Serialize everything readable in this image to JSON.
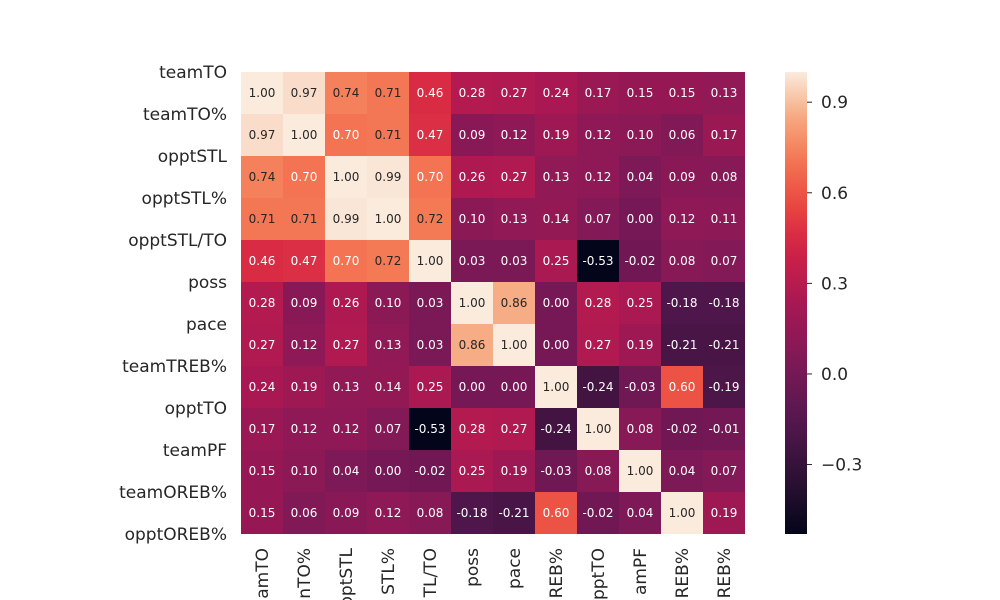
{
  "chart_data": {
    "type": "heatmap",
    "title": "",
    "labels": [
      "teamTO",
      "teamTO%",
      "opptSTL",
      "opptSTL%",
      "opptSTL/TO",
      "poss",
      "pace",
      "teamTREB%",
      "opptTO",
      "teamPF",
      "teamOREB%",
      "opptOREB%"
    ],
    "x_tick_labels": [
      "amTO",
      "nTO%",
      "pptSTL",
      "STL%",
      "TL/TO",
      "poss",
      "pace",
      "REB%",
      "opptTO",
      "amPF",
      "REB%",
      "REB%"
    ],
    "matrix": [
      [
        1.0,
        0.97,
        0.74,
        0.71,
        0.46,
        0.28,
        0.27,
        0.24,
        0.17,
        0.15,
        0.15,
        0.13
      ],
      [
        0.97,
        1.0,
        0.7,
        0.71,
        0.47,
        0.09,
        0.12,
        0.19,
        0.12,
        0.1,
        0.06,
        0.17
      ],
      [
        0.74,
        0.7,
        1.0,
        0.99,
        0.7,
        0.26,
        0.27,
        0.13,
        0.12,
        0.04,
        0.09,
        0.08
      ],
      [
        0.71,
        0.71,
        0.99,
        1.0,
        0.72,
        0.1,
        0.13,
        0.14,
        0.07,
        -0.0,
        0.12,
        0.11
      ],
      [
        0.46,
        0.47,
        0.7,
        0.72,
        1.0,
        0.03,
        0.03,
        0.25,
        -0.53,
        -0.02,
        0.08,
        0.07
      ],
      [
        0.28,
        0.09,
        0.26,
        0.1,
        0.03,
        1.0,
        0.86,
        -0.0,
        0.28,
        0.25,
        -0.18,
        -0.18
      ],
      [
        0.27,
        0.12,
        0.27,
        0.13,
        0.03,
        0.86,
        1.0,
        -0.0,
        0.27,
        0.19,
        -0.21,
        -0.21
      ],
      [
        0.24,
        0.19,
        0.13,
        0.14,
        0.25,
        -0.0,
        -0.0,
        1.0,
        -0.24,
        -0.03,
        0.6,
        -0.19
      ],
      [
        0.17,
        0.12,
        0.12,
        0.07,
        -0.53,
        0.28,
        0.27,
        -0.24,
        1.0,
        0.08,
        -0.02,
        -0.01
      ],
      [
        0.15,
        0.1,
        0.04,
        -0.0,
        -0.02,
        0.25,
        0.19,
        -0.03,
        0.08,
        1.0,
        0.04,
        0.07
      ],
      [
        0.15,
        0.06,
        0.09,
        0.12,
        0.08,
        -0.18,
        -0.21,
        0.6,
        -0.02,
        0.04,
        1.0,
        0.19
      ],
      [
        0.13,
        0.17,
        0.08,
        0.11,
        0.07,
        -0.18,
        -0.21,
        -0.19,
        -0.01,
        0.07,
        0.19,
        1.0
      ]
    ],
    "vmin": -0.53,
    "vmax": 1.0,
    "colormap": "rocket",
    "annotation_format": "0.00",
    "colorbar_ticks": [
      "0.9",
      "0.6",
      "0.3",
      "0.0",
      "−0.3"
    ],
    "colorbar_tick_values": [
      0.9,
      0.6,
      0.3,
      0.0,
      -0.3
    ],
    "grid": false
  }
}
